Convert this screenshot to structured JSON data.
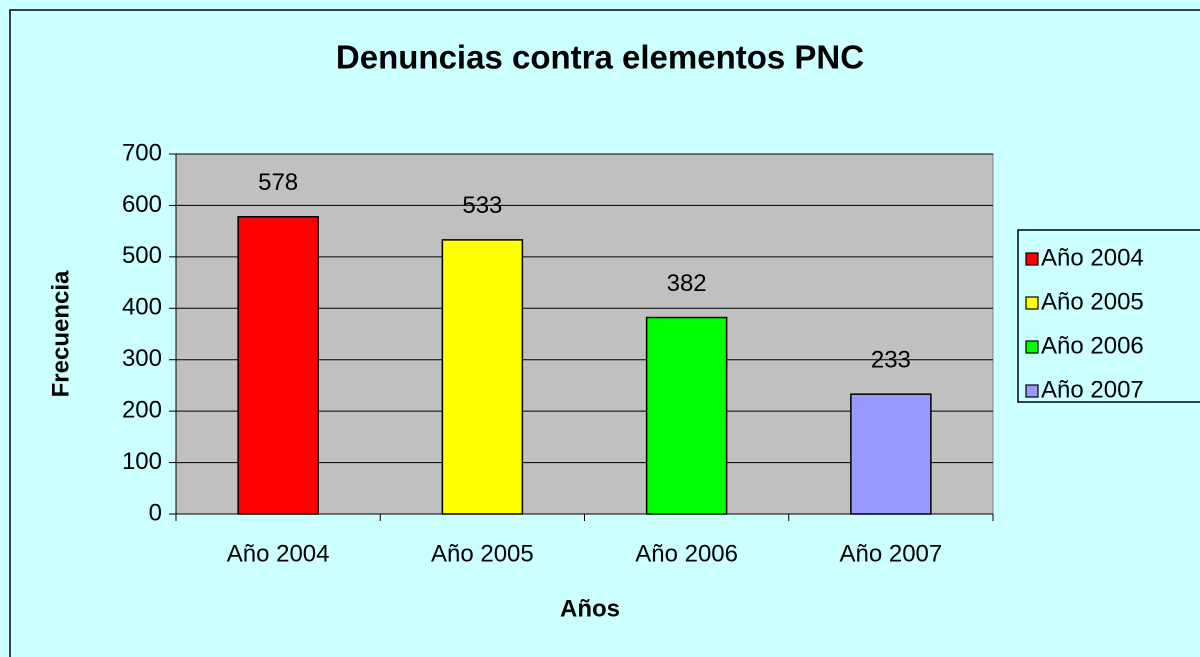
{
  "chart_data": {
    "type": "bar",
    "title": "Denuncias contra elementos PNC",
    "x_label": "Años",
    "y_label": "Frecuencia",
    "categories": [
      "Año 2004",
      "Año 2005",
      "Año 2006",
      "Año 2007"
    ],
    "values": [
      578,
      533,
      382,
      233
    ],
    "colors": [
      "#ff0000",
      "#ffff00",
      "#00ff00",
      "#9999ff"
    ],
    "ylim": [
      0,
      700
    ],
    "yticks": [
      0,
      100,
      200,
      300,
      400,
      500,
      600,
      700
    ],
    "grid": true,
    "legend": "right"
  }
}
